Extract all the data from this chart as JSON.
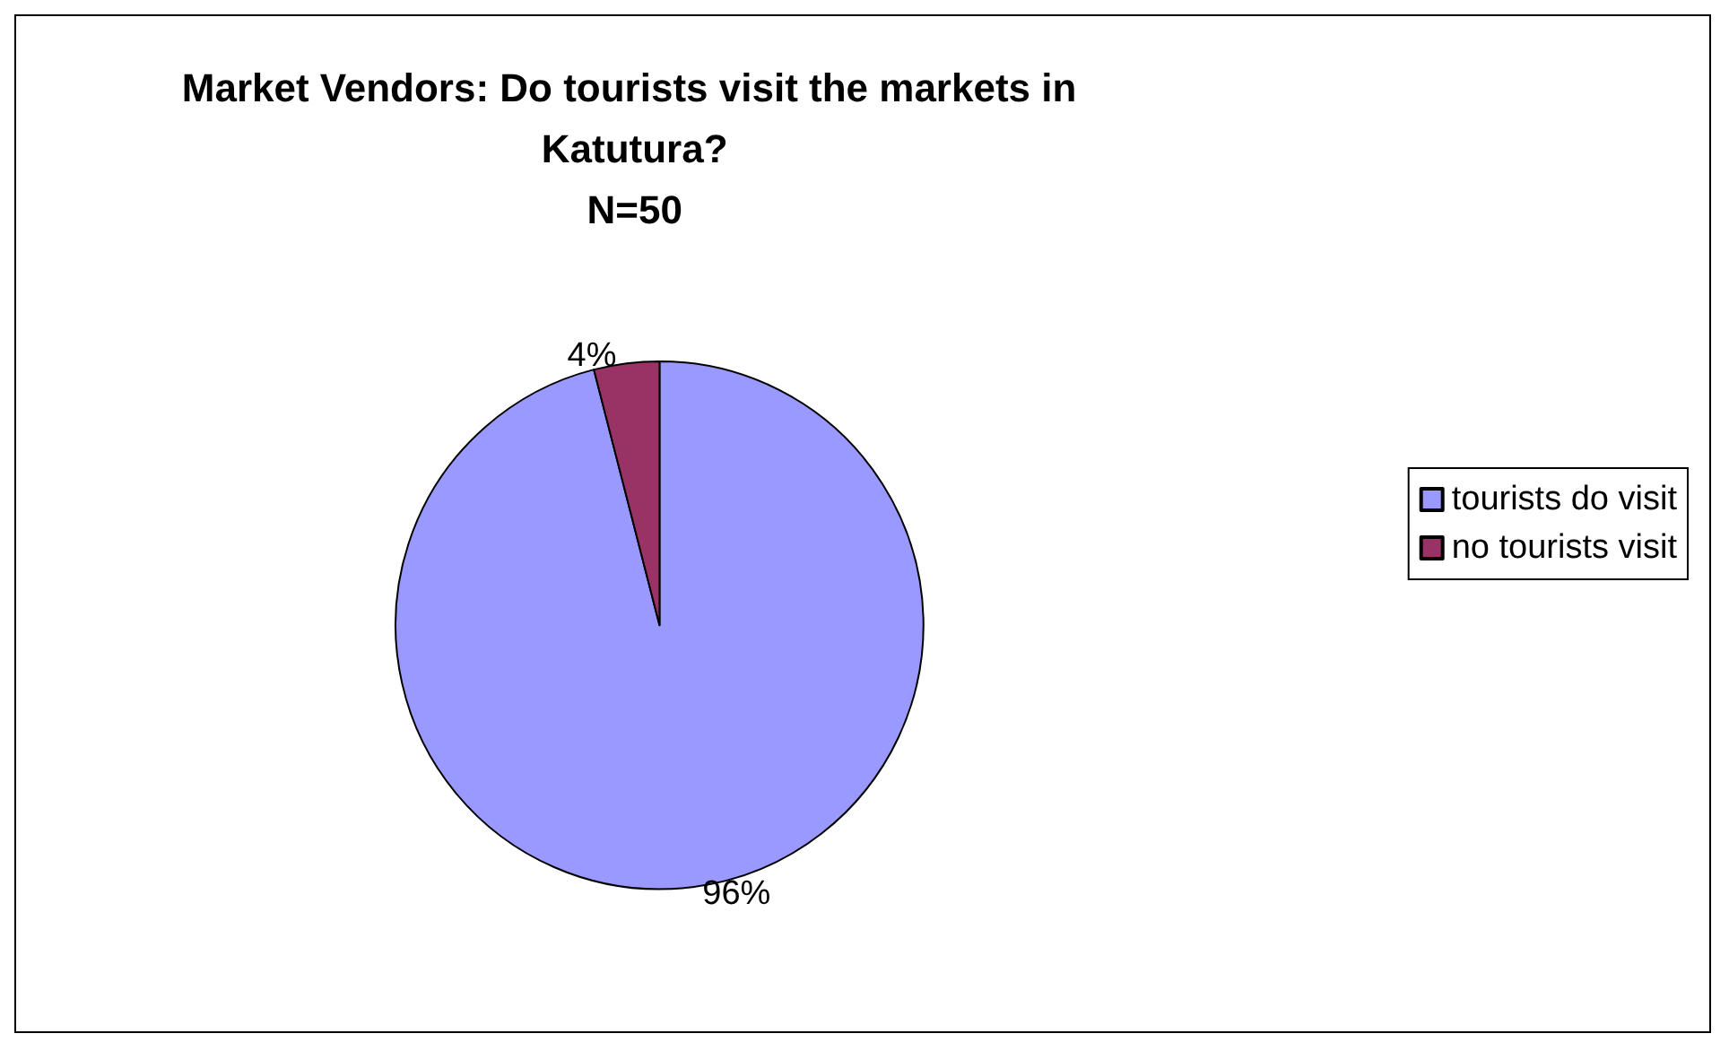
{
  "chart_data": {
    "type": "pie",
    "title": "Market Vendors: Do tourists visit the markets in Katutura?",
    "subtitle": "N=50",
    "categories": [
      "tourists do visit",
      "no tourists visit"
    ],
    "values": [
      96,
      4
    ],
    "colors": [
      "#9999ff",
      "#993366"
    ],
    "value_labels": [
      "96%",
      "4%"
    ],
    "legend": "right"
  }
}
